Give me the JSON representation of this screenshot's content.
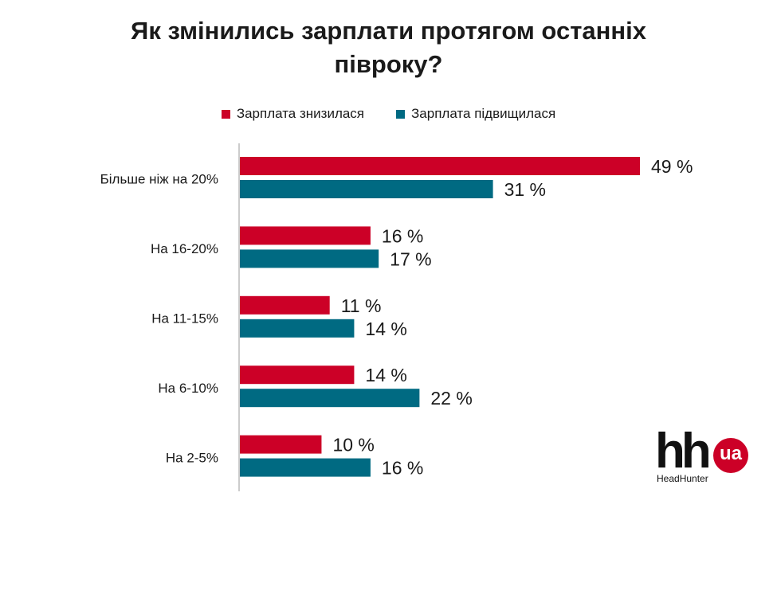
{
  "title_lines": [
    "Як змінились зарплати протягом останніх",
    "півроку?"
  ],
  "colors": {
    "decreased": "#cc0027",
    "increased": "#006a82",
    "axis": "#9a9a9a",
    "text": "#1a1a1a"
  },
  "logo": {
    "main": "hh",
    "badge": "ua",
    "sub": "HeadHunter"
  },
  "chart_data": {
    "type": "bar",
    "orientation": "horizontal",
    "title": "Як змінились зарплати протягом останніх півроку?",
    "categories": [
      "Більше ніж на 20%",
      "На 16-20%",
      "На 11-15%",
      "На 6-10%",
      "На 2-5%"
    ],
    "series": [
      {
        "name": "Зарплата знизилася",
        "values": [
          49,
          16,
          11,
          14,
          10
        ]
      },
      {
        "name": "Зарплата підвищилася",
        "values": [
          31,
          17,
          14,
          22,
          16
        ]
      }
    ],
    "value_suffix": " %",
    "xlim": [
      0,
      50
    ],
    "legend_position": "top-center",
    "grid": false
  }
}
